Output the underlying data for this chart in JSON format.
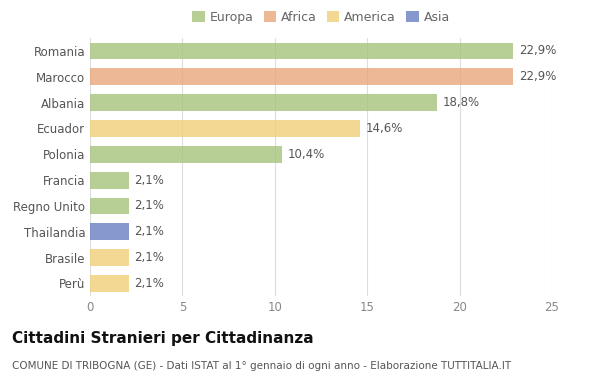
{
  "countries": [
    "Romania",
    "Marocco",
    "Albania",
    "Ecuador",
    "Polonia",
    "Francia",
    "Regno Unito",
    "Thailandia",
    "Brasile",
    "Perù"
  ],
  "values": [
    22.9,
    22.9,
    18.8,
    14.6,
    10.4,
    2.1,
    2.1,
    2.1,
    2.1,
    2.1
  ],
  "labels": [
    "22,9%",
    "22,9%",
    "18,8%",
    "14,6%",
    "10,4%",
    "2,1%",
    "2,1%",
    "2,1%",
    "2,1%",
    "2,1%"
  ],
  "colors": [
    "#a8c47e",
    "#e8a97e",
    "#a8c47e",
    "#f0d07a",
    "#a8c47e",
    "#a8c47e",
    "#a8c47e",
    "#6b82c4",
    "#f0d07a",
    "#f0d07a"
  ],
  "legend_labels": [
    "Europa",
    "Africa",
    "America",
    "Asia"
  ],
  "legend_colors": [
    "#a8c47e",
    "#e8a97e",
    "#f0d07a",
    "#6b82c4"
  ],
  "title": "Cittadini Stranieri per Cittadinanza",
  "subtitle": "COMUNE DI TRIBOGNA (GE) - Dati ISTAT al 1° gennaio di ogni anno - Elaborazione TUTTITALIA.IT",
  "xlim": [
    0,
    25
  ],
  "xticks": [
    0,
    5,
    10,
    15,
    20,
    25
  ],
  "background_color": "#ffffff",
  "grid_color": "#dddddd",
  "bar_height": 0.65,
  "title_fontsize": 11,
  "subtitle_fontsize": 7.5,
  "label_fontsize": 8.5,
  "tick_fontsize": 8.5,
  "legend_fontsize": 9
}
